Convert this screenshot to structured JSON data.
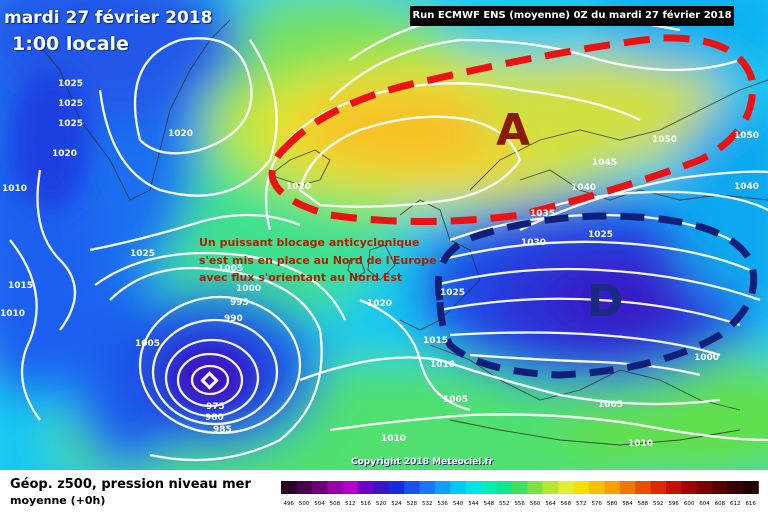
{
  "header": {
    "date": "mardi 27 février 2018",
    "time": "1:00 locale",
    "run": "Run ECMWF ENS (moyenne) 0Z du mardi 27 février 2018"
  },
  "annotation": {
    "lines": [
      "Un puissant blocage anticyclonique",
      "s'est mis en place au Nord de l'Europe",
      "avec flux s'orientant au Nord Est"
    ],
    "color": "#b02000"
  },
  "systems": {
    "high": {
      "label": "A",
      "color": "#8a1a00",
      "outline": "#ee1111"
    },
    "low": {
      "label": "D",
      "color": "#1a2a80",
      "outline": "#10207a"
    }
  },
  "isobar_labels": [
    "1025",
    "1025",
    "1025",
    "1020",
    "1020",
    "1020",
    "1010",
    "1025",
    "1015",
    "1010",
    "1005",
    "1000",
    "995",
    "990",
    "1005",
    "975",
    "980",
    "985",
    "1020",
    "1025",
    "1030",
    "1035",
    "1040",
    "1045",
    "1050",
    "1050",
    "1040",
    "1025",
    "1015",
    "1010",
    "1005",
    "1000",
    "1005",
    "1010",
    "1010"
  ],
  "legend": {
    "title": "Géop. z500, pression niveau mer",
    "subtitle": "moyenne   (+0h)",
    "ticks": [
      "496",
      "500",
      "504",
      "508",
      "512",
      "516",
      "520",
      "524",
      "528",
      "532",
      "536",
      "540",
      "544",
      "548",
      "552",
      "556",
      "560",
      "564",
      "568",
      "572",
      "576",
      "580",
      "584",
      "588",
      "592",
      "596",
      "600",
      "604",
      "608",
      "612",
      "616"
    ],
    "colors": [
      "#2a0028",
      "#4a004e",
      "#70007a",
      "#9a00aa",
      "#b400c8",
      "#7000c8",
      "#3a14c8",
      "#1a2ae0",
      "#1a50f0",
      "#1a78f8",
      "#10a0f8",
      "#00c8f8",
      "#00e4e8",
      "#00f0b8",
      "#10e890",
      "#40e060",
      "#80e040",
      "#b4e830",
      "#e0f030",
      "#f8e000",
      "#f8c000",
      "#f8a000",
      "#f07800",
      "#e85000",
      "#e02800",
      "#c81000",
      "#a00000",
      "#7a0000",
      "#560000",
      "#380000",
      "#200000"
    ]
  },
  "copyright": "Copyright 2018 Meteociel.fr"
}
